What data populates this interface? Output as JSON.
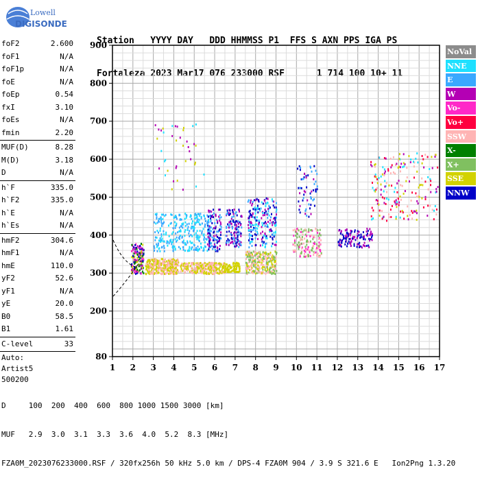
{
  "logo": {
    "line1": "Lowell",
    "line2": "DIGISONDE"
  },
  "header": {
    "labels": "Station   YYYY DAY   DDD HHMMSS P1  FFS S AXN PPS IGA PS",
    "values": "Fortaleza 2023 Mar17 076 233000 RSF      1 714 100 10+ 11"
  },
  "params": [
    {
      "label": "foF2",
      "value": "2.600"
    },
    {
      "label": "foF1",
      "value": "N/A"
    },
    {
      "label": "foF1p",
      "value": "N/A"
    },
    {
      "label": "foE",
      "value": "N/A"
    },
    {
      "label": "foEp",
      "value": "0.54"
    },
    {
      "label": "fxI",
      "value": "3.10"
    },
    {
      "label": "foEs",
      "value": "N/A"
    },
    {
      "label": "fmin",
      "value": "2.20"
    },
    {
      "label": "MUF(D)",
      "value": "8.28"
    },
    {
      "label": "M(D)",
      "value": "3.18"
    },
    {
      "label": "D",
      "value": "N/A"
    },
    {
      "label": "h`F",
      "value": "335.0"
    },
    {
      "label": "h`F2",
      "value": "335.0"
    },
    {
      "label": "h`E",
      "value": "N/A"
    },
    {
      "label": "h`Es",
      "value": "N/A"
    },
    {
      "label": "hmF2",
      "value": "304.6"
    },
    {
      "label": "hmF1",
      "value": "N/A"
    },
    {
      "label": "hmE",
      "value": "110.0"
    },
    {
      "label": "yF2",
      "value": "52.6"
    },
    {
      "label": "yF1",
      "value": "N/A"
    },
    {
      "label": "yE",
      "value": "20.0"
    },
    {
      "label": "B0",
      "value": "58.5"
    },
    {
      "label": "B1",
      "value": "1.61"
    },
    {
      "label": "C-level",
      "value": "33"
    }
  ],
  "auto": {
    "l1": "Auto:",
    "l2": "Artist5",
    "l3": "500200"
  },
  "legend": [
    {
      "label": "NoVal",
      "color": "#8c8c8c"
    },
    {
      "label": "NNE",
      "color": "#1ee0ff"
    },
    {
      "label": "E",
      "color": "#3aa8ff"
    },
    {
      "label": "W",
      "color": "#b400b4"
    },
    {
      "label": "Vo-",
      "color": "#ff28c8"
    },
    {
      "label": "Vo+",
      "color": "#ff0040"
    },
    {
      "label": "SSW",
      "color": "#ffb4b4"
    },
    {
      "label": "X-",
      "color": "#008000"
    },
    {
      "label": "X+",
      "color": "#80c060"
    },
    {
      "label": "SSE",
      "color": "#d2d200"
    },
    {
      "label": "NNW",
      "color": "#0000c8"
    }
  ],
  "footer": {
    "d_row": "D     100  200  400  600  800 1000 1500 3000 [km]",
    "muf_row": "MUF   2.9  3.0  3.1  3.3  3.6  4.0  5.2  8.3 [MHz]",
    "info": "FZA0M_2023076233000.RSF / 320fx256h 50 kHz 5.0 km / DPS-4 FZA0M 904 / 3.9 S 321.6 E   Ion2Png 1.3.20"
  },
  "chart_data": {
    "type": "scatter",
    "xlim": [
      1,
      17
    ],
    "ylim": [
      80,
      900
    ],
    "xticks": [
      1,
      2,
      3,
      4,
      5,
      6,
      7,
      8,
      9,
      10,
      11,
      12,
      13,
      14,
      15,
      16,
      17
    ],
    "yticks": [
      80,
      200,
      300,
      400,
      500,
      600,
      700,
      800,
      900
    ],
    "grid": true,
    "clusters": [
      {
        "x": [
          1.9,
          2.5
        ],
        "y": [
          300,
          380
        ],
        "colors": [
          "W",
          "Vo-",
          "X-",
          "NNW",
          "SSE"
        ],
        "n": 160
      },
      {
        "x": [
          2.6,
          4.2
        ],
        "y": [
          300,
          340
        ],
        "colors": [
          "SSE",
          "SSW"
        ],
        "n": 320
      },
      {
        "x": [
          3.0,
          5.8
        ],
        "y": [
          360,
          460
        ],
        "colors": [
          "E",
          "NNE"
        ],
        "n": 300
      },
      {
        "x": [
          4.3,
          6.5
        ],
        "y": [
          300,
          330
        ],
        "colors": [
          "SSE",
          "SSW"
        ],
        "n": 260
      },
      {
        "x": [
          5.6,
          6.3
        ],
        "y": [
          360,
          470
        ],
        "colors": [
          "NNW",
          "W",
          "E"
        ],
        "n": 120
      },
      {
        "x": [
          6.5,
          7.3
        ],
        "y": [
          370,
          470
        ],
        "colors": [
          "NNW",
          "E",
          "W"
        ],
        "n": 130
      },
      {
        "x": [
          6.4,
          7.2
        ],
        "y": [
          305,
          330
        ],
        "colors": [
          "SSE"
        ],
        "n": 90
      },
      {
        "x": [
          7.5,
          9.0
        ],
        "y": [
          300,
          360
        ],
        "colors": [
          "SSE",
          "SSW",
          "X+"
        ],
        "n": 280
      },
      {
        "x": [
          7.6,
          9.0
        ],
        "y": [
          370,
          500
        ],
        "colors": [
          "NNW",
          "W",
          "E",
          "NNE"
        ],
        "n": 220
      },
      {
        "x": [
          9.8,
          11.2
        ],
        "y": [
          345,
          420
        ],
        "colors": [
          "SSW",
          "Vo-",
          "X+"
        ],
        "n": 160
      },
      {
        "x": [
          10.0,
          11.0
        ],
        "y": [
          450,
          590
        ],
        "colors": [
          "NNW",
          "W",
          "E"
        ],
        "n": 60
      },
      {
        "x": [
          12.0,
          13.7
        ],
        "y": [
          370,
          420
        ],
        "colors": [
          "NNW",
          "W"
        ],
        "n": 120
      },
      {
        "x": [
          13.6,
          16.9
        ],
        "y": [
          440,
          620
        ],
        "colors": [
          "SSE",
          "W",
          "Vo+",
          "NNE",
          "SSW"
        ],
        "n": 200
      },
      {
        "x": [
          3.0,
          5.5
        ],
        "y": [
          520,
          700
        ],
        "colors": [
          "NNE",
          "W",
          "SSE"
        ],
        "n": 40
      }
    ]
  }
}
